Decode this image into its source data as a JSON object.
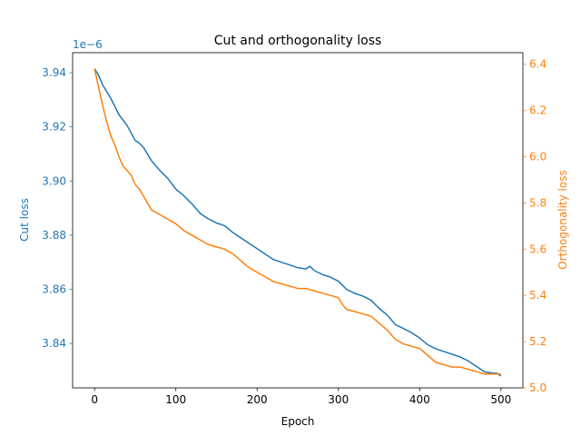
{
  "chart_data": {
    "type": "line",
    "title": "Cut and orthogonality loss",
    "xlabel": "Epoch",
    "ylabel_left": "Cut loss",
    "ylabel_right": "Orthogonality loss",
    "left_offset_text": "1e−6",
    "xlim": [
      -27,
      527
    ],
    "ylim_left": [
      3.8236,
      3.9474
    ],
    "ylim_right": [
      5.0,
      6.45
    ],
    "x_ticks": [
      0,
      100,
      200,
      300,
      400,
      500
    ],
    "x_tick_labels": [
      "0",
      "100",
      "200",
      "300",
      "400",
      "500"
    ],
    "y_left_ticks": [
      3.84,
      3.86,
      3.88,
      3.9,
      3.92,
      3.94
    ],
    "y_left_tick_labels": [
      "3.84",
      "3.86",
      "3.88",
      "3.90",
      "3.92",
      "3.94"
    ],
    "y_right_ticks": [
      5.0,
      5.2,
      5.4,
      5.6,
      5.8,
      6.0,
      6.2,
      6.4
    ],
    "y_right_tick_labels": [
      "5.0",
      "5.2",
      "5.4",
      "5.6",
      "5.8",
      "6.0",
      "6.2",
      "6.4"
    ],
    "grid": false,
    "colors": {
      "left": "#1f77b4",
      "right": "#ff7f0e",
      "axes": "#000000"
    },
    "series": [
      {
        "axis": "left",
        "x": [
          0,
          5,
          10,
          20,
          30,
          40,
          50,
          55,
          60,
          70,
          80,
          90,
          100,
          110,
          120,
          130,
          140,
          150,
          160,
          170,
          180,
          190,
          200,
          210,
          220,
          230,
          240,
          250,
          260,
          265,
          270,
          280,
          290,
          300,
          310,
          320,
          330,
          340,
          350,
          360,
          370,
          380,
          390,
          400,
          410,
          420,
          430,
          440,
          450,
          460,
          470,
          480,
          490,
          495,
          500
        ],
        "values": [
          3.9415,
          3.939,
          3.9355,
          3.9305,
          3.9245,
          3.9205,
          3.915,
          3.914,
          3.9125,
          3.9075,
          3.904,
          3.901,
          3.897,
          3.8945,
          3.8915,
          3.888,
          3.886,
          3.8845,
          3.8835,
          3.881,
          3.879,
          3.877,
          3.875,
          3.873,
          3.871,
          3.87,
          3.869,
          3.868,
          3.8675,
          3.8685,
          3.867,
          3.8655,
          3.8645,
          3.863,
          3.86,
          3.8585,
          3.8575,
          3.856,
          3.853,
          3.8505,
          3.847,
          3.8455,
          3.844,
          3.842,
          3.8395,
          3.838,
          3.837,
          3.836,
          3.835,
          3.8335,
          3.8315,
          3.8295,
          3.829,
          3.829,
          3.828
        ]
      },
      {
        "axis": "right",
        "x": [
          0,
          5,
          10,
          15,
          20,
          25,
          30,
          35,
          40,
          45,
          50,
          55,
          60,
          65,
          70,
          80,
          90,
          100,
          110,
          120,
          130,
          140,
          150,
          160,
          170,
          180,
          190,
          200,
          210,
          220,
          230,
          240,
          250,
          260,
          270,
          280,
          290,
          300,
          305,
          310,
          320,
          330,
          340,
          350,
          360,
          370,
          380,
          390,
          400,
          410,
          420,
          430,
          440,
          450,
          460,
          470,
          480,
          490,
          500
        ],
        "values": [
          6.38,
          6.3,
          6.22,
          6.15,
          6.09,
          6.05,
          6.0,
          5.96,
          5.94,
          5.92,
          5.88,
          5.86,
          5.83,
          5.8,
          5.77,
          5.75,
          5.73,
          5.71,
          5.68,
          5.66,
          5.64,
          5.62,
          5.61,
          5.6,
          5.58,
          5.55,
          5.52,
          5.5,
          5.48,
          5.46,
          5.45,
          5.44,
          5.43,
          5.43,
          5.42,
          5.41,
          5.4,
          5.39,
          5.36,
          5.34,
          5.33,
          5.32,
          5.31,
          5.28,
          5.25,
          5.21,
          5.19,
          5.18,
          5.17,
          5.14,
          5.11,
          5.1,
          5.09,
          5.09,
          5.08,
          5.07,
          5.06,
          5.06,
          5.06
        ]
      }
    ]
  }
}
